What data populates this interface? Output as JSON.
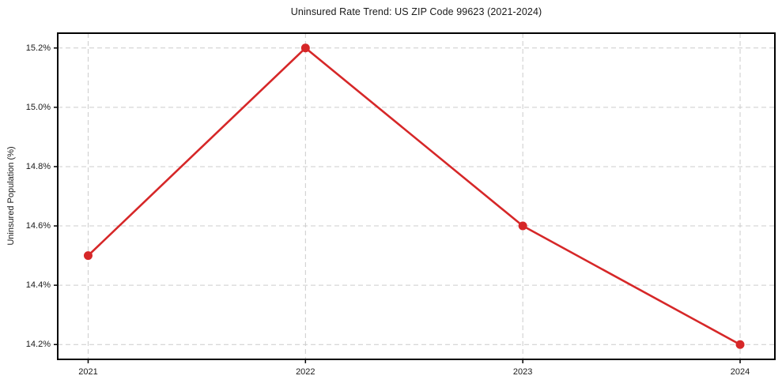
{
  "chart_data": {
    "type": "line",
    "title": "Uninsured Rate Trend: US ZIP Code 99623 (2021-2024)",
    "xlabel": "",
    "ylabel": "Uninsured Population (%)",
    "x": [
      2021,
      2022,
      2023,
      2024
    ],
    "categories": [
      "2021",
      "2022",
      "2023",
      "2024"
    ],
    "series": [
      {
        "name": "Uninsured Population (%)",
        "values": [
          14.5,
          15.2,
          14.6,
          14.2
        ]
      }
    ],
    "x_ticks": [
      {
        "value": 2021,
        "label": "2021"
      },
      {
        "value": 2022,
        "label": "2022"
      },
      {
        "value": 2023,
        "label": "2023"
      },
      {
        "value": 2024,
        "label": "2024"
      }
    ],
    "y_ticks": [
      {
        "value": 14.2,
        "label": "14.2%"
      },
      {
        "value": 14.4,
        "label": "14.4%"
      },
      {
        "value": 14.6,
        "label": "14.6%"
      },
      {
        "value": 14.8,
        "label": "14.8%"
      },
      {
        "value": 15.0,
        "label": "15.0%"
      },
      {
        "value": 15.2,
        "label": "15.2%"
      }
    ],
    "xlim": [
      2020.86,
      2024.16
    ],
    "ylim": [
      14.15,
      15.25
    ],
    "grid": true,
    "grid_style": "dashed",
    "legend": "none",
    "colors": {
      "line": "#d62728",
      "marker": "#d62728",
      "grid": "#cccccc",
      "axis": "#000000",
      "text": "#1a1a1a",
      "background": "#ffffff"
    }
  }
}
